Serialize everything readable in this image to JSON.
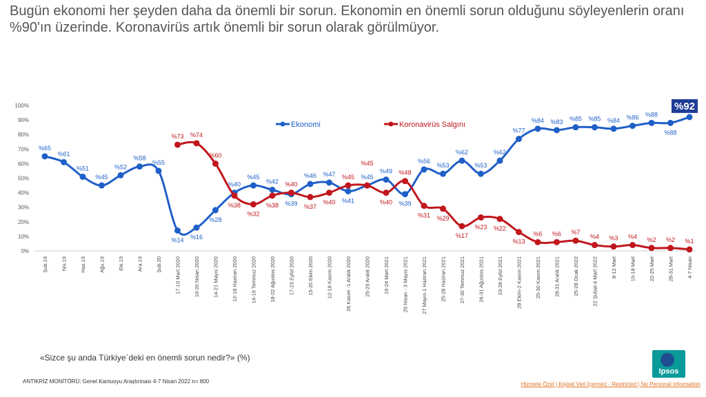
{
  "title": "Bugün ekonomi her şeyden daha da önemli bir sorun. Ekonomin en önemli sorun olduğunu söyleyenlerin oranı %90'ın üzerinde. Koronavirüs artık önemli bir sorun olarak görülmüyor.",
  "question": "«Sizce şu anda Türkiye`deki en önemli sorun nedir?» (%)",
  "source": "ANTİKRİZ  MONİTÖRÜ:  Genel Kamuoyu Araştırması  4-7 Nisan 2022 n= 800",
  "classification": "Hizmete Özel | Kişisel Veri İçermez - Restricted | No Personal Information",
  "logo": "Ipsos",
  "colors": {
    "ekonomi": "#1f5fc8",
    "korona": "#c0161c",
    "highlight": "#1f3c96"
  },
  "chart_data": {
    "type": "line",
    "ylim": [
      0,
      100
    ],
    "yticks": [
      "0%",
      "10%",
      "20%",
      "30%",
      "40%",
      "50%",
      "60%",
      "70%",
      "80%",
      "90%",
      "100%"
    ],
    "legend_placement": "top-center",
    "categories": [
      "Şub.19",
      "Nis.19",
      "Haz.19",
      "Ağu.19",
      "Eki.19",
      "Ara.19",
      "Şub.20",
      "17-19 Mart 2020",
      "16-20 Nisan 2020",
      "14-21 Mayıs 2020",
      "12-18 Haziran 2020",
      "14-19 Temmuz 2020",
      "18-22 Ağustos 2020",
      "17-23 Eylül 2020",
      "15-20 Ekim 2020",
      "12-18 Kasım 2020",
      "26 Kasım -1 Aralık 2020",
      "25-29 Aralık 2020",
      "19-24 Mart 2021",
      "29 Nisan - 3 Mayıs 2021",
      "27 Mayıs-1 Haziran 2021",
      "25-28 Haziran 2021",
      "27-30 Temmuz 2021",
      "26-31 Ağustos 2021",
      "23-28 Eylül 2021",
      "28 Ekim-2 Kasım 2021",
      "25-30 Kasım 2021",
      "28-31 Aralık 2021",
      "25-28 Ocak 2022",
      "22 Şubat-4 Mart 2022",
      "8-12 Mart",
      "15-18 Mart",
      "22-25 Mart",
      "28-31 Mart",
      "4-7 Nisan"
    ],
    "series": [
      {
        "name": "Ekonomi",
        "values": [
          65,
          61,
          51,
          45,
          52,
          58,
          55,
          14,
          16,
          28,
          40,
          45,
          42,
          39,
          46,
          47,
          41,
          45,
          49,
          39,
          56,
          53,
          62,
          53,
          62,
          77,
          84,
          83,
          85,
          85,
          84,
          86,
          88,
          88,
          92
        ]
      },
      {
        "name": "Koronavirüs Salgını",
        "values": [
          null,
          null,
          null,
          null,
          null,
          null,
          null,
          73,
          74,
          60,
          38,
          32,
          38,
          40,
          37,
          40,
          45,
          45,
          40,
          48,
          31,
          29,
          17,
          23,
          22,
          13,
          6,
          6,
          7,
          4,
          3,
          4,
          2,
          2,
          1
        ]
      }
    ]
  }
}
